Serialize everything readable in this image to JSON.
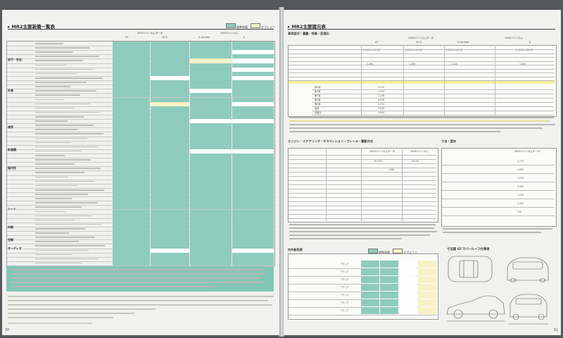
{
  "left_page": {
    "title": "▸ MR2主要装備一覧表",
    "legend": {
      "standard": "標準装備",
      "option": "オプション"
    },
    "col_group_1": "2000ツインカムターボ",
    "col_group_2": "2000ツインカム",
    "columns": [
      "GT",
      "GT-S",
      "G-Limited",
      "G"
    ],
    "sections": [
      "走行・安全",
      "外装",
      "視界",
      "計器類",
      "操作性",
      "シート",
      "内装",
      "空調",
      "オーディオ"
    ],
    "page_number": "30"
  },
  "right_page": {
    "title": "▸ MR2主要諸元表",
    "table1_caption": "車両型式・重量・性能・変速比",
    "col_group_1": "2000ツインカムターボ",
    "col_group_2": "2000ツインカム",
    "columns": [
      "GT",
      "GT-S",
      "G-Limited",
      "G"
    ],
    "model_codes": [
      "E-SW20-AGHQZ",
      "E-SW20-AGMQZ",
      "E-SW20-AGPQZ",
      "E-SW20-AGMQF"
    ],
    "weights": [
      "1,260",
      "1,250",
      "1,220",
      "1,200"
    ],
    "gear_labels": [
      "第1速",
      "第2速",
      "第3速",
      "第4速",
      "第5速",
      "後退",
      "減速比"
    ],
    "gear_ratios": [
      "3.230",
      "1.913",
      "1.258",
      "0.918",
      "0.731",
      "3.545",
      "3.944"
    ],
    "table2_caption": "エンジン・ステアリング・サスペンション・ブレーキ・駆動方式",
    "engines": [
      "3S-GTE",
      "3S-GE"
    ],
    "displacement": "1,998",
    "table3_caption": "内外配色表",
    "colors": [
      "ブラック",
      "ブラック",
      "ブラック",
      "ブラック",
      "ブラック",
      "ブラック",
      "ブラック"
    ],
    "table4_caption": "寸法・室内",
    "dims": [
      "4,170",
      "1,695",
      "1,235",
      "2,400",
      "1,470",
      "1,450",
      "130"
    ],
    "drawing_caption": "寸法図  GT Tバールーフ付車身",
    "page_number": "31"
  }
}
